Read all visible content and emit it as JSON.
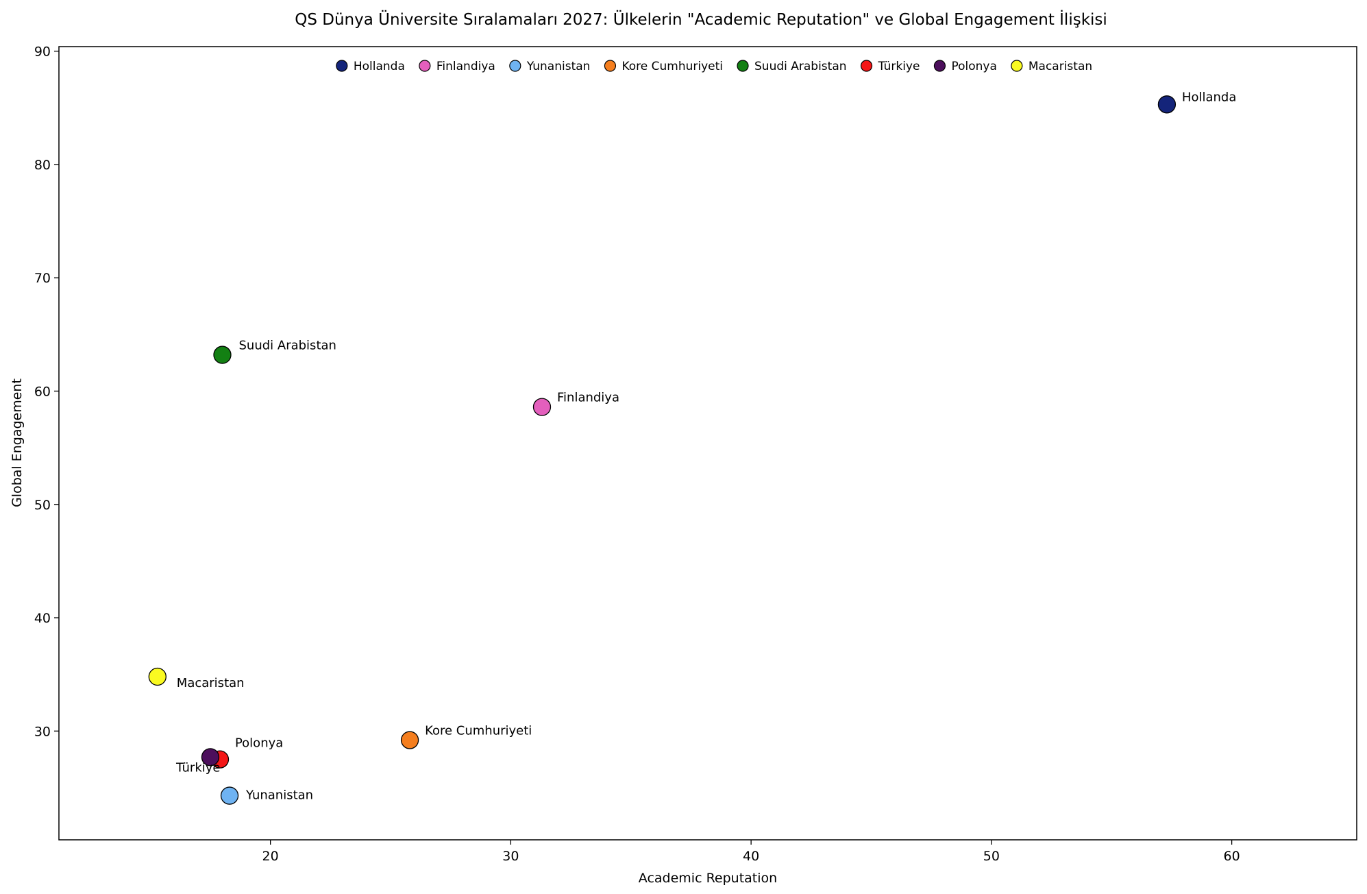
{
  "chart_data": {
    "type": "scatter",
    "title": "QS Dünya Üniversite Sıralamaları 2027: Ülkelerin \"Academic Reputation\" ve Global Engagement İlişkisi",
    "xlabel": "Academic Reputation",
    "ylabel": "Global Engagement",
    "xlim": [
      11.2,
      65.2
    ],
    "ylim": [
      20.4,
      90.4
    ],
    "xticks": [
      20,
      30,
      40,
      50,
      60
    ],
    "yticks": [
      30,
      40,
      50,
      60,
      70,
      80,
      90
    ],
    "grid": false,
    "legend_position": "top-center",
    "series": [
      {
        "name": "Hollanda",
        "color": "#14247a",
        "x": 57.3,
        "y": 85.3
      },
      {
        "name": "Finlandiya",
        "color": "#e45fbd",
        "x": 31.3,
        "y": 58.6
      },
      {
        "name": "Yunanistan",
        "color": "#6fb3f2",
        "x": 18.3,
        "y": 24.3
      },
      {
        "name": "Kore Cumhuriyeti",
        "color": "#f57e1e",
        "x": 25.8,
        "y": 29.2
      },
      {
        "name": "Suudi Arabistan",
        "color": "#138013",
        "x": 18.0,
        "y": 63.2
      },
      {
        "name": "Türkiye",
        "color": "#f41717",
        "x": 17.9,
        "y": 27.5
      },
      {
        "name": "Polonya",
        "color": "#4c0f5c",
        "x": 17.5,
        "y": 27.7
      },
      {
        "name": "Macaristan",
        "color": "#fafa21",
        "x": 15.3,
        "y": 34.8
      }
    ]
  }
}
